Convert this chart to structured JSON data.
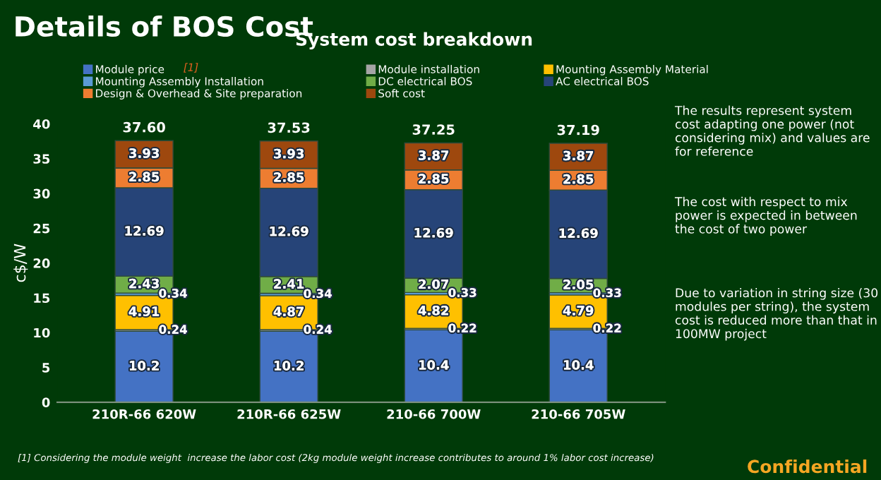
{
  "chart_data": {
    "type": "bar",
    "stacked": true,
    "title": "Details of BOS Cost",
    "subtitle": "System cost breakdown",
    "ylabel": "c$/W",
    "categories": [
      "210R-66 620W",
      "210R-66 625W",
      "210-66 700W",
      "210-66 705W"
    ],
    "series": [
      {
        "name": "Module price",
        "color": "#4472c4",
        "values": [
          10.2,
          10.2,
          10.4,
          10.4
        ]
      },
      {
        "name": "Module installation",
        "color": "#a5a5a5",
        "values": [
          0.24,
          0.24,
          0.22,
          0.22
        ]
      },
      {
        "name": "Mounting Assembly Material",
        "color": "#ffc000",
        "values": [
          4.91,
          4.87,
          4.82,
          4.79
        ]
      },
      {
        "name": "Mounting Assembly Installation",
        "color": "#5b9bd5",
        "values": [
          0.34,
          0.34,
          0.33,
          0.33
        ]
      },
      {
        "name": "DC electrical BOS",
        "color": "#70ad47",
        "values": [
          2.43,
          2.41,
          2.07,
          2.05
        ]
      },
      {
        "name": "AC electrical BOS",
        "color": "#264478",
        "values": [
          12.69,
          12.69,
          12.69,
          12.69
        ]
      },
      {
        "name": "Design & Overhead & Site preparation",
        "color": "#ed7d31",
        "values": [
          2.85,
          2.85,
          2.85,
          2.85
        ]
      },
      {
        "name": "Soft cost",
        "color": "#9e480e",
        "values": [
          3.93,
          3.93,
          3.87,
          3.87
        ]
      }
    ],
    "totals": [
      "37.60",
      "37.53",
      "37.25",
      "37.19"
    ],
    "data_labels": true,
    "ylim": [
      0,
      40
    ],
    "yticks": [
      0,
      5,
      10,
      15,
      20,
      25,
      30,
      35,
      40
    ],
    "grid": false,
    "legend": "top",
    "annotations": [
      "[1]",
      "The results represent system  cost adapting one power (not considering mix) and values are for reference",
      "The cost with respect to mix power is expected in between the cost of two power",
      "Due to variation in string size (30 modules per string), the system cost is reduced more than that in 100MW project",
      "[1] Considering the module weight  increase the labor cost (2kg module weight increase contributes to around 1% labor cost increase)",
      "Confidential"
    ]
  }
}
